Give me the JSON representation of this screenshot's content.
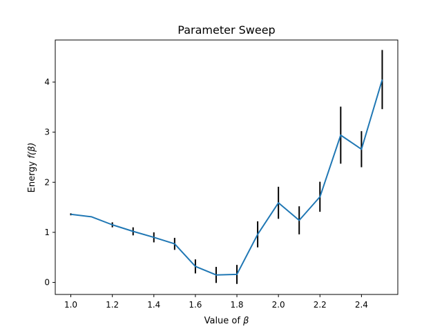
{
  "chart_data": {
    "type": "line",
    "title": "Parameter Sweep",
    "xlabel_prefix": "Value of ",
    "xlabel_symbol": "β",
    "ylabel_prefix": "Energy ",
    "ylabel_symbol": "f(β)",
    "xlim": [
      0.925,
      2.575
    ],
    "ylim": [
      -0.24,
      4.84
    ],
    "x_ticks": [
      1.0,
      1.2,
      1.4,
      1.6,
      1.8,
      2.0,
      2.2,
      2.4
    ],
    "x_tick_labels": [
      "1.0",
      "1.2",
      "1.4",
      "1.6",
      "1.8",
      "2.0",
      "2.2",
      "2.4"
    ],
    "y_ticks": [
      0,
      1,
      2,
      3,
      4
    ],
    "y_tick_labels": [
      "0",
      "1",
      "2",
      "3",
      "4"
    ],
    "grid": false,
    "line_color": "#1f77b4",
    "errorbar_color": "#000000",
    "series": [
      {
        "x": [
          1.0,
          1.1,
          1.2,
          1.3,
          1.4,
          1.5,
          1.6,
          1.7,
          1.8,
          1.9,
          2.0,
          2.1,
          2.2,
          2.3,
          2.4,
          2.5
        ],
        "y": [
          1.36,
          1.31,
          1.15,
          1.02,
          0.9,
          0.77,
          0.32,
          0.15,
          0.16,
          0.96,
          1.59,
          1.24,
          1.71,
          2.94,
          2.66,
          4.05
        ],
        "yerr": [
          0.02,
          0.0,
          0.05,
          0.08,
          0.1,
          0.12,
          0.14,
          0.16,
          0.19,
          0.26,
          0.32,
          0.28,
          0.3,
          0.57,
          0.36,
          0.59
        ]
      }
    ]
  }
}
